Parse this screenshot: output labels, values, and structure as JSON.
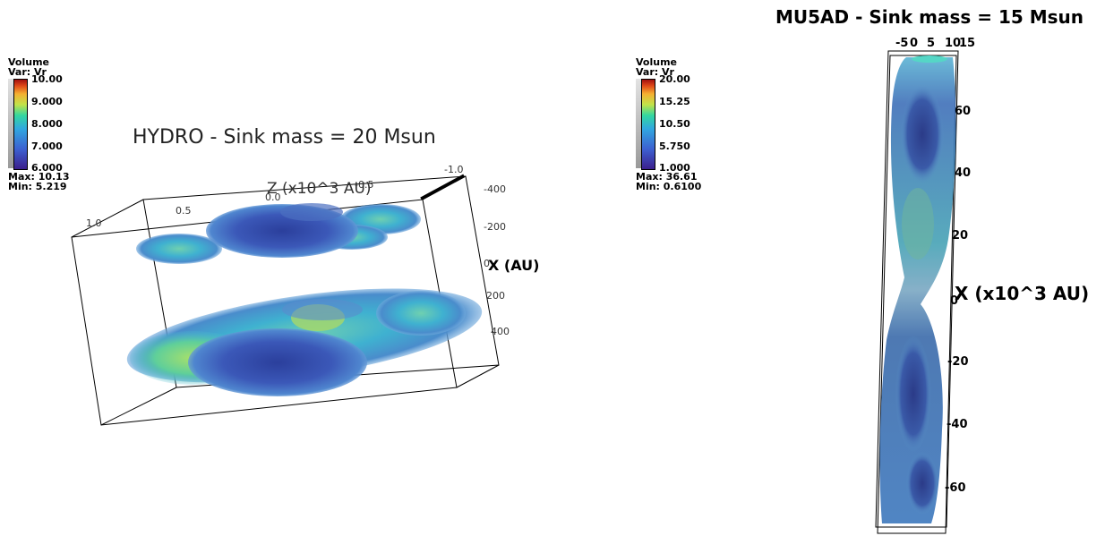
{
  "left_panel": {
    "title": "HYDRO - Sink mass = 20 Msun",
    "legend": {
      "heading": "Volume",
      "variable": "Var: Vr",
      "ticks": [
        "10.00",
        "9.000",
        "8.000",
        "7.000",
        "6.000"
      ],
      "max": "Max:  10.13",
      "min": "Min:  5.219"
    },
    "axis_z_label": "Z (x10^3 AU)",
    "axis_x_label": "X (AU)",
    "z_ticks": [
      "1.0",
      "0.5",
      "0.0",
      "-0.5",
      "-1.0"
    ],
    "x_ticks": [
      "-400",
      "-200",
      "0",
      "200",
      "400"
    ]
  },
  "right_panel": {
    "title": "MU5AD - Sink mass = 15 Msun",
    "legend": {
      "heading": "Volume",
      "variable": "Var: Vr",
      "ticks": [
        "20.00",
        "15.25",
        "10.50",
        "5.750",
        "1.000"
      ],
      "max": "Max:  36.61",
      "min": "Min:  0.6100"
    },
    "axis_x_label": "X (x10^3 AU)",
    "top_ticks": [
      "-5",
      "0",
      "5",
      "10",
      "15"
    ],
    "x_ticks": [
      "60",
      "40",
      "20",
      "0",
      "-20",
      "-40",
      "-60"
    ]
  }
}
